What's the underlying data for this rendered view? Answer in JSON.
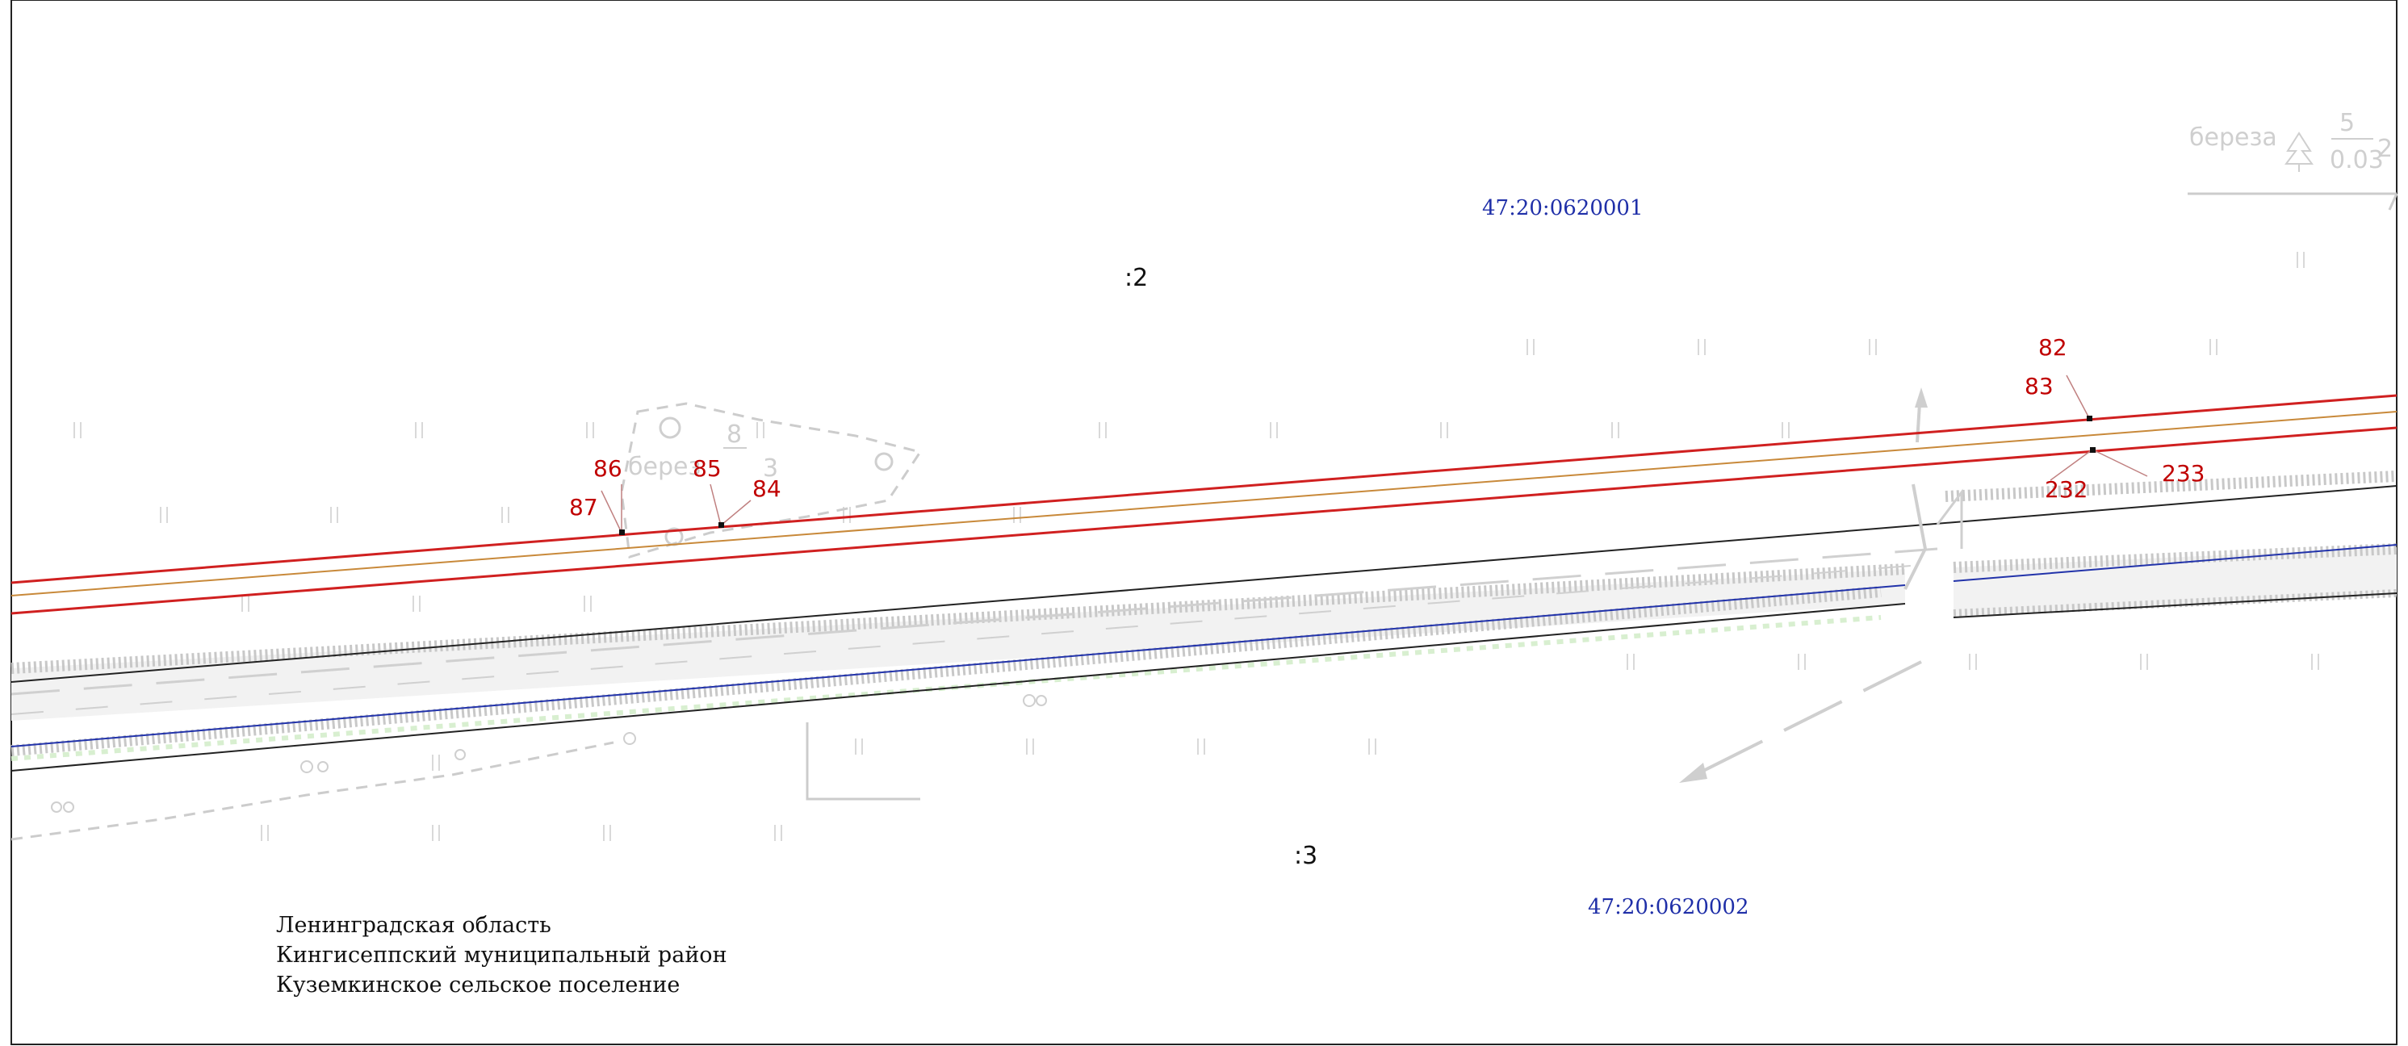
{
  "quarters": {
    "north": "47:20:0620001",
    "south": "47:20:0620002"
  },
  "parcels": {
    "north": ":2",
    "south": ":3"
  },
  "points": {
    "p82": "82",
    "p83": "83",
    "p84": "84",
    "p85": "85",
    "p86": "86",
    "p87": "87",
    "p232": "232",
    "p233": "233"
  },
  "trees": {
    "left": {
      "species": "берез",
      "num": "8",
      "den": "",
      "suffix": "3"
    },
    "right": {
      "species": "береза",
      "num": "5",
      "den": "0.03",
      "suffix": "2"
    }
  },
  "admin": {
    "line1": "Ленинградская область",
    "line2": "Кингисеппский муниципальный район",
    "line3": "Куземкинское сельское поселение"
  },
  "colors": {
    "boundary": "#d02020",
    "quarter_label": "#1f2fa8",
    "points": "#c00000"
  }
}
